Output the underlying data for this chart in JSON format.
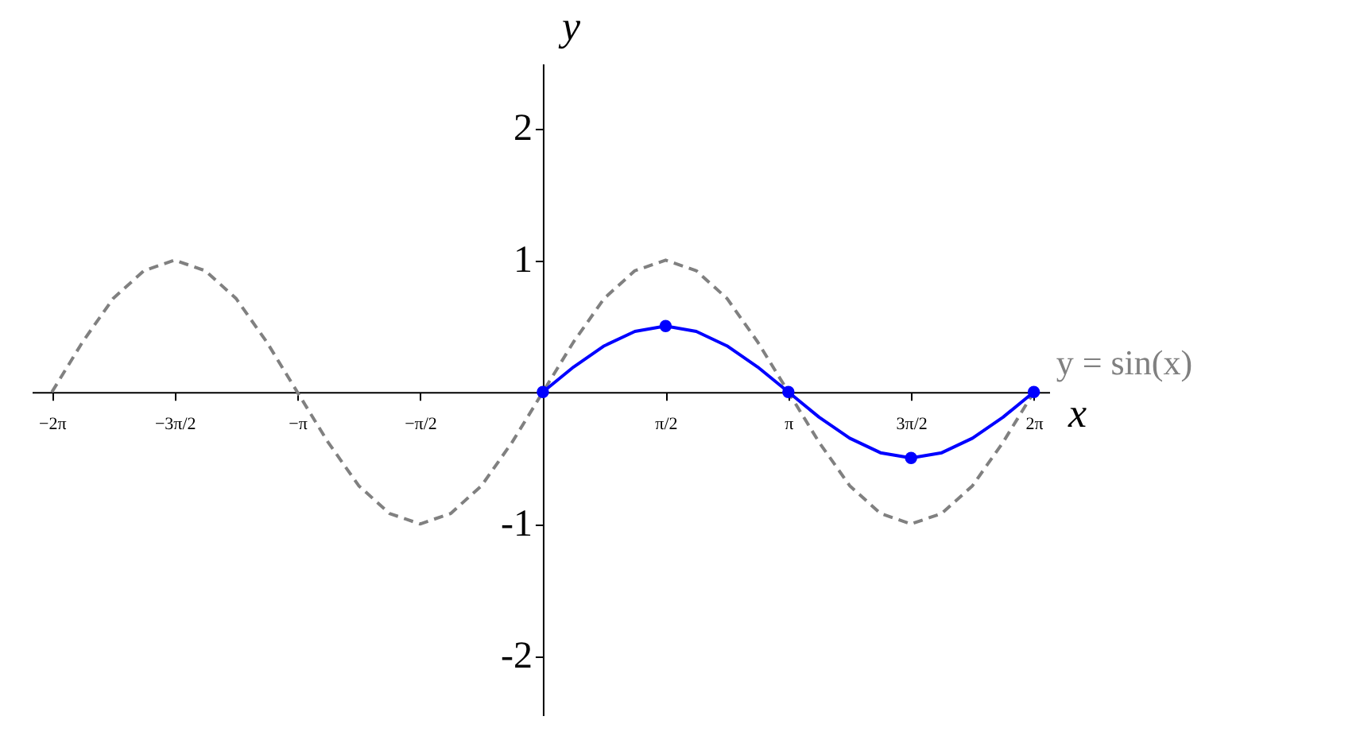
{
  "chart_data": {
    "type": "line",
    "xlabel": "x",
    "ylabel": "y",
    "xlim": [
      -6.54,
      6.48
    ],
    "ylim": [
      -2.45,
      2.49
    ],
    "xticks": [
      {
        "value": -6.283,
        "label": "−2π"
      },
      {
        "value": -4.712,
        "label": "−3π/2"
      },
      {
        "value": -3.142,
        "label": "−π"
      },
      {
        "value": -1.571,
        "label": "−π/2"
      },
      {
        "value": 1.571,
        "label": "π/2"
      },
      {
        "value": 3.142,
        "label": "π"
      },
      {
        "value": 4.712,
        "label": "3π/2"
      },
      {
        "value": 6.283,
        "label": "2π"
      }
    ],
    "yticks": [
      -2,
      -1,
      1,
      2
    ],
    "grid": false,
    "series": [
      {
        "name": "y = sin(x)",
        "type": "line",
        "color": "#808080",
        "line_style": "dashed",
        "x": [
          -6.283,
          -5.89,
          -5.498,
          -5.105,
          -4.712,
          -4.32,
          -3.927,
          -3.534,
          -3.142,
          -2.749,
          -2.356,
          -1.963,
          -1.571,
          -1.178,
          -0.785,
          -0.393,
          0,
          0.393,
          0.785,
          1.178,
          1.571,
          1.963,
          2.356,
          2.749,
          3.142,
          3.534,
          3.927,
          4.32,
          4.712,
          5.105,
          5.498,
          5.89,
          6.283
        ],
        "values": [
          0,
          0.38,
          0.71,
          0.92,
          1,
          0.92,
          0.71,
          0.38,
          0,
          -0.38,
          -0.71,
          -0.92,
          -1,
          -0.92,
          -0.71,
          -0.38,
          0,
          0.38,
          0.71,
          0.92,
          1,
          0.92,
          0.71,
          0.38,
          0,
          -0.38,
          -0.71,
          -0.92,
          -1,
          -0.92,
          -0.71,
          -0.38,
          0
        ]
      },
      {
        "type": "line",
        "color": "#0000ff",
        "line_style": "solid",
        "x": [
          0,
          0.393,
          0.785,
          1.178,
          1.571,
          1.963,
          2.356,
          2.749,
          3.142,
          3.534,
          3.927,
          4.32,
          4.712,
          5.105,
          5.498,
          5.89,
          6.283
        ],
        "values": [
          0,
          0.19,
          0.35,
          0.46,
          0.5,
          0.46,
          0.35,
          0.19,
          0,
          -0.19,
          -0.35,
          -0.46,
          -0.5,
          -0.46,
          -0.35,
          -0.19,
          0
        ]
      },
      {
        "type": "scatter",
        "color": "#0000ff",
        "marker": "circle",
        "x": [
          0,
          1.571,
          3.142,
          4.712,
          6.283
        ],
        "values": [
          0,
          0.5,
          0,
          -0.5,
          0
        ]
      }
    ]
  }
}
